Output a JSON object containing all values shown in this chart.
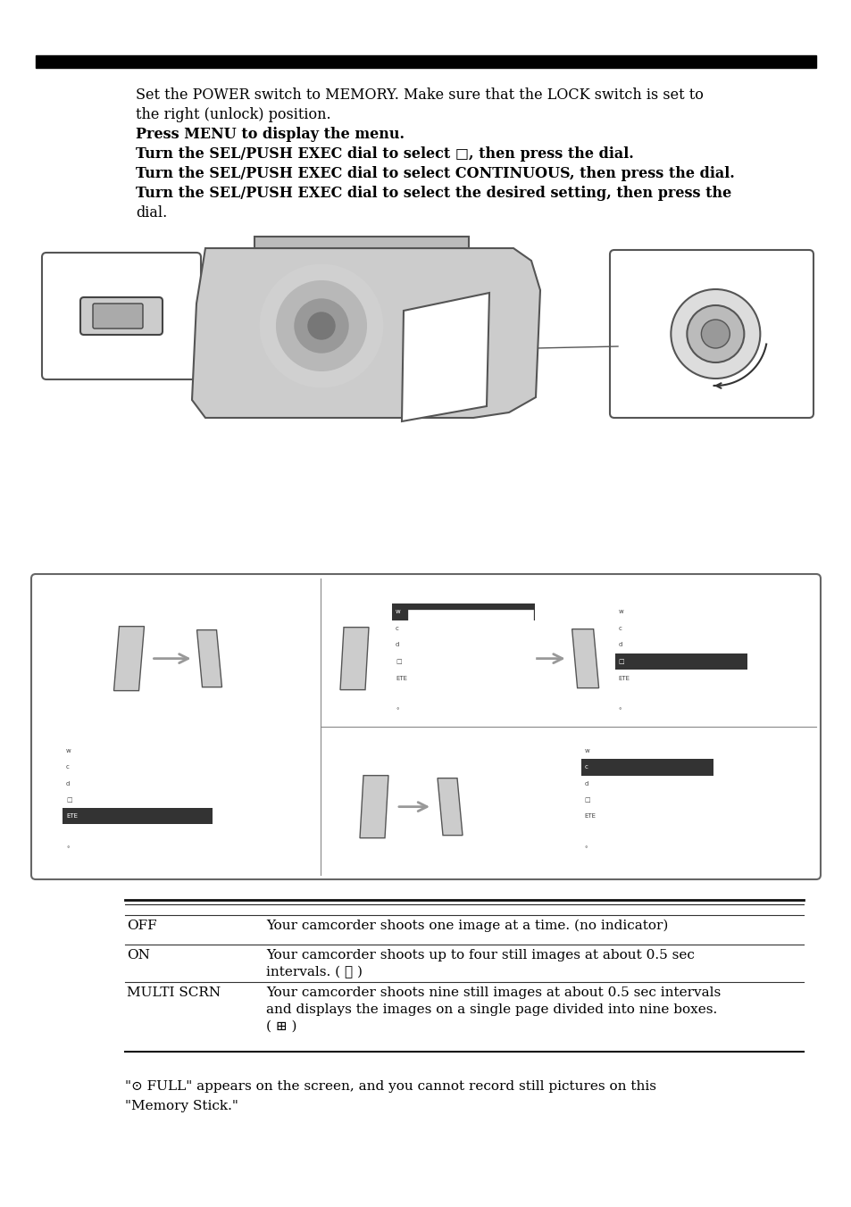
{
  "bg_color": "#ffffff",
  "top_bar_color": "#000000",
  "text_color": "#000000",
  "intro_lines": [
    "Set the POWER switch to MEMORY. Make sure that the LOCK switch is set to",
    "the right (unlock) position.",
    "Press MENU to display the menu.",
    "Turn the SEL/PUSH EXEC dial to select □, then press the dial.",
    "Turn the SEL/PUSH EXEC dial to select CONTINUOUS, then press the dial.",
    "Turn the SEL/PUSH EXEC dial to select the desired setting, then press the",
    "dial."
  ],
  "table_rows": [
    {
      "label": "OFF",
      "text": "Your camcorder shoots one image at a time. (no indicator)"
    },
    {
      "label": "ON",
      "text": "Your camcorder shoots up to four still images at about 0.5 sec\nintervals. ( ⓶ )"
    },
    {
      "label": "MULTI SCRN",
      "text": "Your camcorder shoots nine still images at about 0.5 sec intervals\nand displays the images on a single page divided into nine boxes.\n( ⊞ )"
    }
  ],
  "footer_lines": [
    "\"⊙ FULL\" appears on the screen, and you cannot record still pictures on this",
    "\"Memory Stick.\""
  ]
}
